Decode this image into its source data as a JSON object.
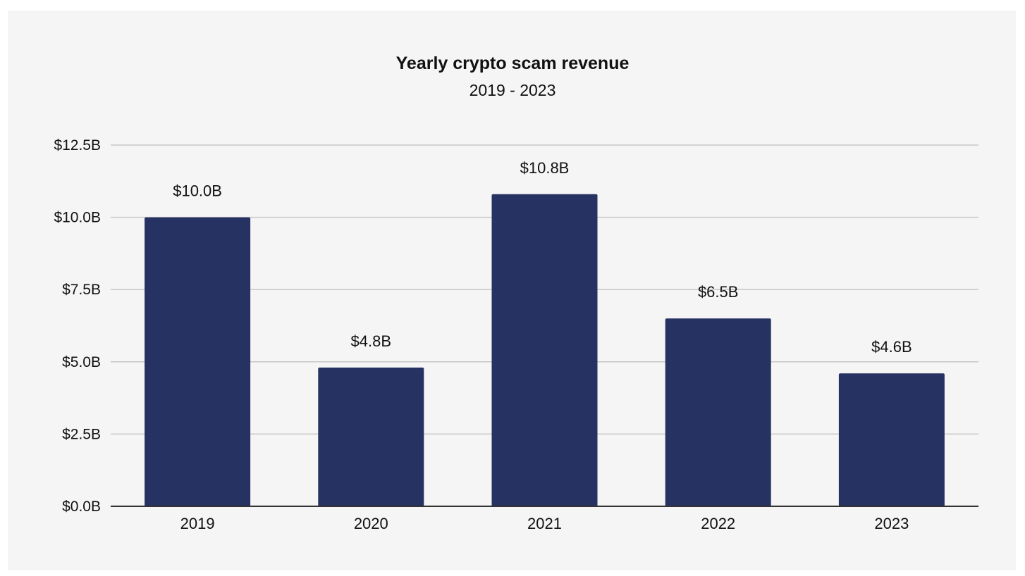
{
  "chart_data": {
    "type": "bar",
    "title": "Yearly crypto scam revenue",
    "subtitle": "2019 - 2023",
    "categories": [
      "2019",
      "2020",
      "2021",
      "2022",
      "2023"
    ],
    "values": [
      10.0,
      4.8,
      10.8,
      6.5,
      4.6
    ],
    "data_labels": [
      "$10.0B",
      "$4.8B",
      "$10.8B",
      "$6.5B",
      "$4.6B"
    ],
    "unit": "billion USD",
    "ylim": [
      0,
      12.5
    ],
    "yticks": [
      0,
      2.5,
      5.0,
      7.5,
      10.0,
      12.5
    ],
    "ytick_labels": [
      "$0.0B",
      "$2.5B",
      "$5.0B",
      "$7.5B",
      "$10.0B",
      "$12.5B"
    ],
    "xlabel": "",
    "ylabel": "",
    "grid": true,
    "legend": "none",
    "colors": {
      "bar": "#253262",
      "grid": "#c8c8c8",
      "axis": "#333333",
      "background": "#f5f5f5"
    }
  }
}
